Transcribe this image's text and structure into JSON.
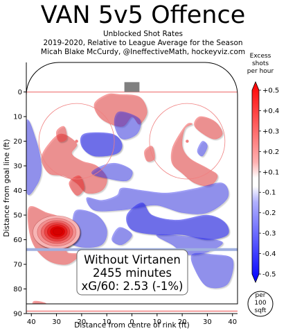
{
  "header": {
    "title": "VAN 5v5 Offence",
    "subtitle_1": "Unblocked Shot Rates",
    "subtitle_2": "2019-2020, Relative to League Average for the Season",
    "subtitle_3": "Micah Blake McCurdy, @IneffectiveMath, hockeyviz.com"
  },
  "annotation": {
    "line_1": "Without Virtanen",
    "line_2": "2455 minutes",
    "line_3": "xG/60: 2.53 (-1%)"
  },
  "per_area_badge": {
    "line_1": "per",
    "line_2": "100",
    "line_3": "sqft"
  },
  "colors": {
    "positive": "#f03030",
    "negative": "#3030f0",
    "rink_line": "#f08080",
    "blue_line": "#a0b0e0"
  },
  "chart_data": {
    "type": "heatmap",
    "xlabel": "Distance from centre of rink (ft)",
    "ylabel": "Distance from goal line (ft)",
    "xlim": [
      42,
      -42
    ],
    "ylim": [
      -12,
      90
    ],
    "x_ticks": [
      "40",
      "30",
      "20",
      "10",
      "0",
      "10",
      "20",
      "30",
      "40"
    ],
    "y_ticks": [
      "0",
      "10",
      "20",
      "30",
      "40",
      "50",
      "60",
      "70",
      "80",
      "90"
    ],
    "colorbar": {
      "title_line_1": "Excess",
      "title_line_2": "shots",
      "title_line_3": "per hour",
      "range": [
        -0.5,
        0.5
      ],
      "ticks": [
        "+0.5",
        "+0.4",
        "+0.3",
        "+0.2",
        "+0.1",
        "-0.1",
        "-0.2",
        "-0.3",
        "-0.4",
        "-0.5"
      ]
    },
    "hot_spot": {
      "x": 30,
      "y": 57,
      "value": 0.5
    },
    "regions": [
      {
        "sign": "positive",
        "level": 0.1,
        "pts": [
          [
            28,
            17
          ],
          [
            33,
            21
          ],
          [
            36,
            27
          ],
          [
            33,
            33
          ],
          [
            27,
            34
          ],
          [
            22,
            37
          ],
          [
            18,
            41
          ],
          [
            12,
            40
          ],
          [
            10,
            35
          ],
          [
            14,
            30
          ],
          [
            20,
            28
          ],
          [
            24,
            25
          ],
          [
            22,
            21
          ]
        ]
      },
      {
        "sign": "positive",
        "level": 0.15,
        "pts": [
          [
            25,
            37
          ],
          [
            21,
            34
          ],
          [
            19,
            39
          ],
          [
            22,
            42
          ]
        ]
      },
      {
        "sign": "positive",
        "level": 0.1,
        "pts": [
          [
            5,
            1
          ],
          [
            10,
            1
          ],
          [
            15,
            5
          ],
          [
            12,
            11
          ],
          [
            4,
            14
          ],
          [
            0,
            10
          ],
          [
            -3,
            13
          ],
          [
            -6,
            8
          ],
          [
            -3,
            2
          ]
        ]
      },
      {
        "sign": "positive",
        "level": 0.1,
        "pts": [
          [
            -24,
            13
          ],
          [
            -21,
            15
          ],
          [
            -20,
            22
          ],
          [
            -23,
            27
          ],
          [
            -30,
            31
          ],
          [
            -34,
            34
          ],
          [
            -31,
            38
          ],
          [
            -25,
            37
          ],
          [
            -20,
            33
          ],
          [
            -16,
            29
          ],
          [
            -16,
            23
          ],
          [
            -19,
            17
          ],
          [
            -22,
            13
          ]
        ]
      },
      {
        "sign": "positive",
        "level": 0.1,
        "pts": [
          [
            -33,
            12
          ],
          [
            -27,
            10
          ],
          [
            -25,
            14
          ],
          [
            -32,
            19
          ],
          [
            -36,
            17
          ]
        ]
      },
      {
        "sign": "positive",
        "level": 0.1,
        "pts": [
          [
            41,
            47
          ],
          [
            34,
            49
          ],
          [
            27,
            52
          ],
          [
            24,
            60
          ],
          [
            26,
            65
          ],
          [
            21,
            66
          ],
          [
            26,
            70
          ],
          [
            34,
            68
          ],
          [
            40,
            60
          ]
        ]
      },
      {
        "sign": "positive",
        "level": 0.1,
        "pts": [
          [
            30,
            16
          ],
          [
            27,
            14
          ],
          [
            26,
            19
          ],
          [
            29,
            20
          ]
        ]
      },
      {
        "sign": "positive",
        "level": 0.1,
        "pts": [
          [
            -8,
            22
          ],
          [
            -5,
            24
          ],
          [
            -6,
            28
          ],
          [
            -9,
            27
          ]
        ]
      },
      {
        "sign": "positive",
        "level": 0.1,
        "pts": [
          [
            39,
            85
          ],
          [
            34,
            86
          ],
          [
            35,
            89
          ],
          [
            39,
            88
          ]
        ]
      },
      {
        "sign": "negative",
        "level": 0.1,
        "pts": [
          [
            42,
            12
          ],
          [
            38,
            20
          ],
          [
            36,
            31
          ],
          [
            38,
            38
          ],
          [
            42,
            40
          ]
        ]
      },
      {
        "sign": "negative",
        "level": 0.2,
        "pts": [
          [
            19,
            17
          ],
          [
            8,
            17
          ],
          [
            4,
            21
          ],
          [
            6,
            25
          ],
          [
            15,
            26
          ],
          [
            20,
            22
          ]
        ]
      },
      {
        "sign": "negative",
        "level": 0.1,
        "pts": [
          [
            5,
            8
          ],
          [
            -3,
            11
          ],
          [
            -2,
            17
          ],
          [
            4,
            19
          ],
          [
            7,
            13
          ]
        ]
      },
      {
        "sign": "negative",
        "level": 0.1,
        "pts": [
          [
            16,
            33
          ],
          [
            10,
            35
          ],
          [
            2,
            36
          ],
          [
            0,
            32
          ],
          [
            6,
            29
          ],
          [
            12,
            30
          ]
        ]
      },
      {
        "sign": "negative",
        "level": 0.1,
        "pts": [
          [
            18,
            43
          ],
          [
            12,
            44
          ],
          [
            6,
            42
          ],
          [
            4,
            39
          ],
          [
            -4,
            40
          ],
          [
            -14,
            41
          ],
          [
            -26,
            39
          ],
          [
            -36,
            37
          ],
          [
            -38,
            43
          ],
          [
            -30,
            49
          ],
          [
            -20,
            49
          ],
          [
            -10,
            46
          ],
          [
            -2,
            47
          ],
          [
            5,
            48
          ],
          [
            15,
            48
          ]
        ]
      },
      {
        "sign": "negative",
        "level": 0.2,
        "pts": [
          [
            -4,
            45
          ],
          [
            -8,
            50
          ],
          [
            -18,
            52
          ],
          [
            -30,
            50
          ],
          [
            -37,
            53
          ],
          [
            -38,
            58
          ],
          [
            -30,
            60
          ],
          [
            -20,
            58
          ],
          [
            -10,
            58
          ],
          [
            0,
            56
          ],
          [
            2,
            50
          ]
        ]
      },
      {
        "sign": "negative",
        "level": 0.1,
        "pts": [
          [
            22,
            48
          ],
          [
            14,
            50
          ],
          [
            10,
            56
          ],
          [
            12,
            62
          ],
          [
            20,
            63
          ],
          [
            26,
            60
          ],
          [
            24,
            54
          ]
        ]
      },
      {
        "sign": "negative",
        "level": 0.1,
        "pts": [
          [
            5,
            55
          ],
          [
            0,
            58
          ],
          [
            4,
            62
          ],
          [
            8,
            60
          ]
        ]
      },
      {
        "sign": "negative",
        "level": 0.1,
        "pts": [
          [
            -10,
            58
          ],
          [
            -16,
            62
          ],
          [
            -22,
            66
          ],
          [
            -30,
            65
          ],
          [
            -36,
            61
          ],
          [
            -25,
            59
          ]
        ]
      },
      {
        "sign": "negative",
        "level": 0.1,
        "pts": [
          [
            -24,
            66
          ],
          [
            -32,
            66
          ],
          [
            -40,
            68
          ],
          [
            -38,
            78
          ],
          [
            -30,
            79
          ],
          [
            -25,
            72
          ]
        ]
      },
      {
        "sign": "negative",
        "level": 0.1,
        "pts": [
          [
            -28,
            20
          ],
          [
            -26,
            24
          ],
          [
            -28,
            26
          ],
          [
            -30,
            22
          ]
        ]
      }
    ]
  }
}
